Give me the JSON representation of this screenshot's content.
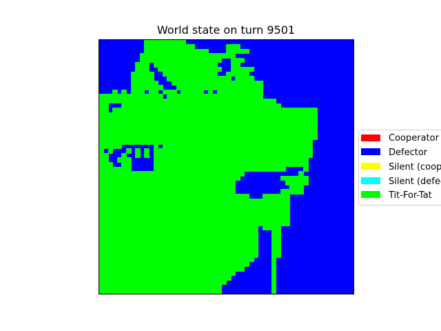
{
  "chart_data": {
    "type": "heatmap",
    "title": "World state on turn 9501",
    "xlabel": "",
    "ylabel": "",
    "axes_ticks": false,
    "legend": {
      "placement": "right, partially clipped",
      "entries": [
        {
          "name": "Cooperator",
          "color": "#ff0000"
        },
        {
          "name": "Defector",
          "color": "#0000ff"
        },
        {
          "name": "Silent (cooperator)",
          "color": "#ffff00"
        },
        {
          "name": "Silent (defector)",
          "color": "#00ffff"
        },
        {
          "name": "Tit-For-Tat",
          "color": "#00ff00"
        }
      ]
    },
    "grid": {
      "rows": 56,
      "cols": 56,
      "background_state": "Defector",
      "fill_state": "Tit-For-Tat",
      "runs_by_row": [
        [
          [
            10,
            19
          ]
        ],
        [
          [
            10,
            21
          ],
          [
            28,
            31
          ]
        ],
        [
          [
            10,
            24
          ],
          [
            28,
            33
          ]
        ],
        [
          [
            9,
            30
          ]
        ],
        [
          [
            9,
            27
          ],
          [
            29,
            32
          ]
        ],
        [
          [
            8,
            11
          ],
          [
            12,
            26
          ],
          [
            29,
            31
          ]
        ],
        [
          [
            8,
            11
          ],
          [
            13,
            27
          ],
          [
            29,
            34
          ]
        ],
        [
          [
            7,
            12
          ],
          [
            14,
            26
          ],
          [
            28,
            33
          ]
        ],
        [
          [
            7,
            12
          ],
          [
            15,
            29
          ],
          [
            30,
            34
          ]
        ],
        [
          [
            7,
            13
          ],
          [
            16,
            36
          ]
        ],
        [
          [
            7,
            14
          ],
          [
            17,
            36
          ]
        ],
        [
          [
            3,
            4
          ],
          [
            5,
            6
          ],
          [
            7,
            10
          ],
          [
            11,
            13
          ],
          [
            14,
            17
          ],
          [
            18,
            23
          ],
          [
            24,
            25
          ],
          [
            26,
            36
          ]
        ],
        [
          [
            0,
            14
          ],
          [
            15,
            36
          ]
        ],
        [
          [
            0,
            39
          ]
        ],
        [
          [
            0,
            2
          ],
          [
            5,
            40
          ]
        ],
        [
          [
            0,
            2
          ],
          [
            3,
            48
          ]
        ],
        [
          [
            0,
            48
          ]
        ],
        [
          [
            0,
            48
          ]
        ],
        [
          [
            0,
            48
          ]
        ],
        [
          [
            0,
            48
          ]
        ],
        [
          [
            0,
            48
          ]
        ],
        [
          [
            0,
            48
          ]
        ],
        [
          [
            0,
            47
          ]
        ],
        [
          [
            0,
            5
          ],
          [
            12,
            13
          ],
          [
            14,
            47
          ]
        ],
        [
          [
            0,
            1
          ],
          [
            2,
            3
          ],
          [
            6,
            7
          ],
          [
            8,
            9
          ],
          [
            10,
            11
          ],
          [
            12,
            47
          ]
        ],
        [
          [
            0,
            2
          ],
          [
            5,
            6
          ],
          [
            8,
            9
          ],
          [
            10,
            11
          ],
          [
            12,
            47
          ]
        ],
        [
          [
            0,
            2
          ],
          [
            4,
            7
          ],
          [
            12,
            46
          ]
        ],
        [
          [
            0,
            3
          ],
          [
            5,
            7
          ],
          [
            12,
            46
          ]
        ],
        [
          [
            0,
            7
          ],
          [
            12,
            41
          ],
          [
            45,
            46
          ]
        ],
        [
          [
            0,
            32
          ],
          [
            44,
            45
          ]
        ],
        [
          [
            0,
            31
          ],
          [
            40,
            46
          ]
        ],
        [
          [
            0,
            30
          ],
          [
            41,
            46
          ]
        ],
        [
          [
            0,
            30
          ],
          [
            42,
            45
          ]
        ],
        [
          [
            0,
            30
          ],
          [
            40,
            45
          ]
        ],
        [
          [
            0,
            33
          ],
          [
            36,
            42
          ]
        ],
        [
          [
            0,
            42
          ]
        ],
        [
          [
            0,
            42
          ]
        ],
        [
          [
            0,
            42
          ]
        ],
        [
          [
            0,
            42
          ]
        ],
        [
          [
            0,
            42
          ]
        ],
        [
          [
            0,
            42
          ]
        ],
        [
          [
            0,
            35
          ],
          [
            36,
            40
          ]
        ],
        [
          [
            0,
            35
          ],
          [
            38,
            40
          ]
        ],
        [
          [
            0,
            35
          ],
          [
            38,
            40
          ]
        ],
        [
          [
            0,
            35
          ],
          [
            38,
            40
          ]
        ],
        [
          [
            0,
            35
          ],
          [
            38,
            40
          ]
        ],
        [
          [
            0,
            35
          ],
          [
            38,
            40
          ]
        ],
        [
          [
            0,
            35
          ],
          [
            38,
            40
          ]
        ],
        [
          [
            0,
            34
          ],
          [
            38,
            39
          ]
        ],
        [
          [
            0,
            33
          ],
          [
            38,
            39
          ]
        ],
        [
          [
            0,
            32
          ],
          [
            38,
            39
          ]
        ],
        [
          [
            0,
            30
          ],
          [
            38,
            39
          ]
        ],
        [
          [
            0,
            29
          ],
          [
            38,
            39
          ]
        ],
        [
          [
            0,
            28
          ],
          [
            38,
            39
          ]
        ],
        [
          [
            0,
            27
          ],
          [
            38,
            39
          ]
        ],
        [
          [
            0,
            27
          ],
          [
            38,
            39
          ]
        ]
      ]
    }
  }
}
